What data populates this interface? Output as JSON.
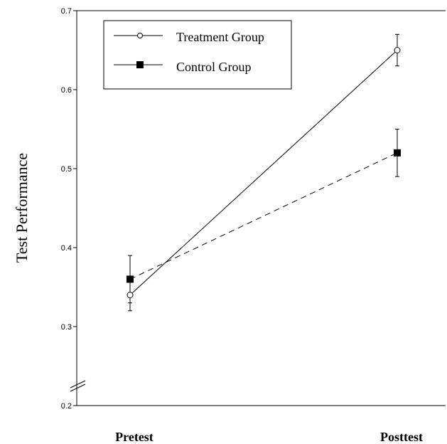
{
  "chart_data": {
    "type": "line",
    "ylabel": "Test Performance",
    "categories": [
      "Pretest",
      "Posttest"
    ],
    "ylim": [
      0.2,
      0.7
    ],
    "yticks": [
      "0.2",
      "0.3",
      "0.4",
      "0.5",
      "0.6",
      "0.7"
    ],
    "axis_break": true,
    "grid": false,
    "legend_placement": "top-left",
    "series": [
      {
        "name": "Treatment Group",
        "marker": "open-circle",
        "line_style": "solid",
        "color": "#000000",
        "values": [
          0.34,
          0.65
        ],
        "error_low": [
          0.32,
          0.63
        ],
        "error_high": [
          0.36,
          0.67
        ]
      },
      {
        "name": "Control Group",
        "marker": "filled-square",
        "line_style": "dashed",
        "color": "#000000",
        "values": [
          0.36,
          0.52
        ],
        "error_low": [
          0.33,
          0.49
        ],
        "error_high": [
          0.39,
          0.55
        ]
      }
    ]
  }
}
